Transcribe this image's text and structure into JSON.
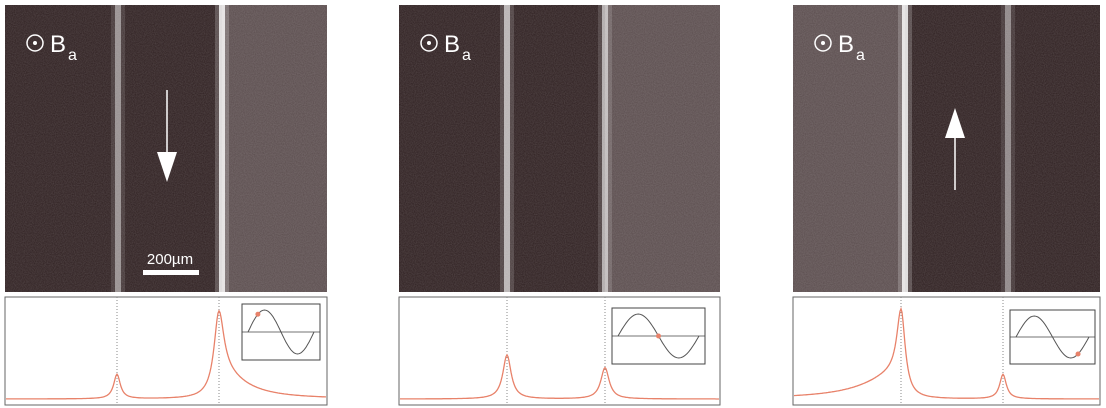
{
  "panels": [
    {
      "field_label": "B",
      "field_subscript": "a",
      "scale_bar": "200µm"
    },
    {
      "field_label": "B",
      "field_subscript": "a"
    },
    {
      "field_label": "B",
      "field_subscript": "a"
    }
  ]
}
